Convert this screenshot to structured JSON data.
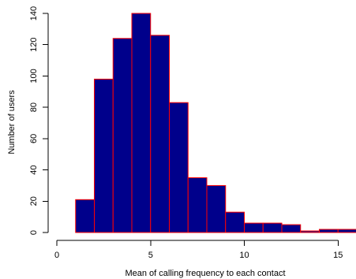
{
  "chart_data": {
    "type": "bar",
    "subtype": "histogram",
    "title": "",
    "xlabel": "Mean of calling frequency to each contact",
    "ylabel": "Number of users",
    "bins": [
      {
        "start": 1,
        "end": 2,
        "count": 21
      },
      {
        "start": 2,
        "end": 3,
        "count": 98
      },
      {
        "start": 3,
        "end": 4,
        "count": 124
      },
      {
        "start": 4,
        "end": 5,
        "count": 140
      },
      {
        "start": 5,
        "end": 6,
        "count": 126
      },
      {
        "start": 6,
        "end": 7,
        "count": 83
      },
      {
        "start": 7,
        "end": 8,
        "count": 35
      },
      {
        "start": 8,
        "end": 9,
        "count": 30
      },
      {
        "start": 9,
        "end": 10,
        "count": 13
      },
      {
        "start": 10,
        "end": 11,
        "count": 6
      },
      {
        "start": 11,
        "end": 12,
        "count": 6
      },
      {
        "start": 12,
        "end": 13,
        "count": 5
      },
      {
        "start": 13,
        "end": 14,
        "count": 1
      },
      {
        "start": 14,
        "end": 15,
        "count": 2
      },
      {
        "start": 15,
        "end": 16,
        "count": 2
      }
    ],
    "xlim": [
      0,
      16
    ],
    "ylim": [
      0,
      140
    ],
    "xticks": [
      0,
      5,
      10,
      15
    ],
    "yticks": [
      0,
      20,
      40,
      60,
      80,
      100,
      120,
      140
    ],
    "xtick_labels": [
      "0",
      "5",
      "10",
      "15"
    ],
    "ytick_labels": [
      "0",
      "20",
      "40",
      "60",
      "80",
      "100",
      "120",
      "140"
    ],
    "grid": false,
    "legend": "none",
    "colors": {
      "bar_fill": "#00008B",
      "bar_stroke": "#FF0000",
      "axis": "#000000"
    }
  }
}
